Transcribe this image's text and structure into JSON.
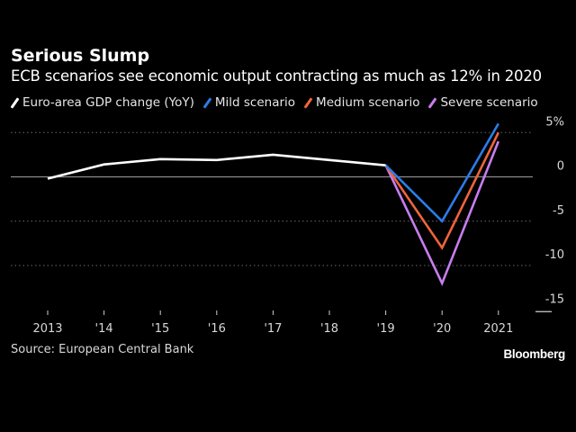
{
  "header": {
    "title": "Serious Slump",
    "subtitle": "ECB scenarios see economic output contracting as much as 12% in 2020"
  },
  "legend": [
    {
      "label": "Euro-area GDP change (YoY)",
      "color": "#ffffff"
    },
    {
      "label": "Mild scenario",
      "color": "#2b7de9"
    },
    {
      "label": "Medium scenario",
      "color": "#f0643c"
    },
    {
      "label": "Severe scenario",
      "color": "#c77df0"
    }
  ],
  "footer": {
    "source": "Source: European Central Bank",
    "brand": "Bloomberg"
  },
  "chart_data": {
    "type": "line",
    "title": "Serious Slump",
    "subtitle": "ECB scenarios see economic output contracting as much as 12% in 2020",
    "xlabel": "",
    "ylabel": "",
    "x": [
      "2013",
      "'14",
      "'15",
      "'16",
      "'17",
      "'18",
      "'19",
      "'20",
      "2021"
    ],
    "ylim": [
      -15,
      5
    ],
    "yticks": [
      5,
      0,
      -5,
      -10,
      -15
    ],
    "ytick_labels": [
      "5%",
      "0",
      "-5",
      "-10",
      "-15"
    ],
    "grid": true,
    "legend_position": "top",
    "series": [
      {
        "name": "Euro-area GDP change (YoY)",
        "color": "#ffffff",
        "values": [
          -0.2,
          1.4,
          2.0,
          1.9,
          2.5,
          1.9,
          1.3,
          null,
          null
        ]
      },
      {
        "name": "Mild scenario",
        "color": "#2b7de9",
        "values": [
          null,
          null,
          null,
          null,
          null,
          null,
          1.3,
          -5.0,
          6.0
        ]
      },
      {
        "name": "Medium scenario",
        "color": "#f0643c",
        "values": [
          null,
          null,
          null,
          null,
          null,
          null,
          1.3,
          -8.0,
          5.0
        ]
      },
      {
        "name": "Severe scenario",
        "color": "#c77df0",
        "values": [
          null,
          null,
          null,
          null,
          null,
          null,
          1.3,
          -12.0,
          4.0
        ]
      }
    ]
  }
}
